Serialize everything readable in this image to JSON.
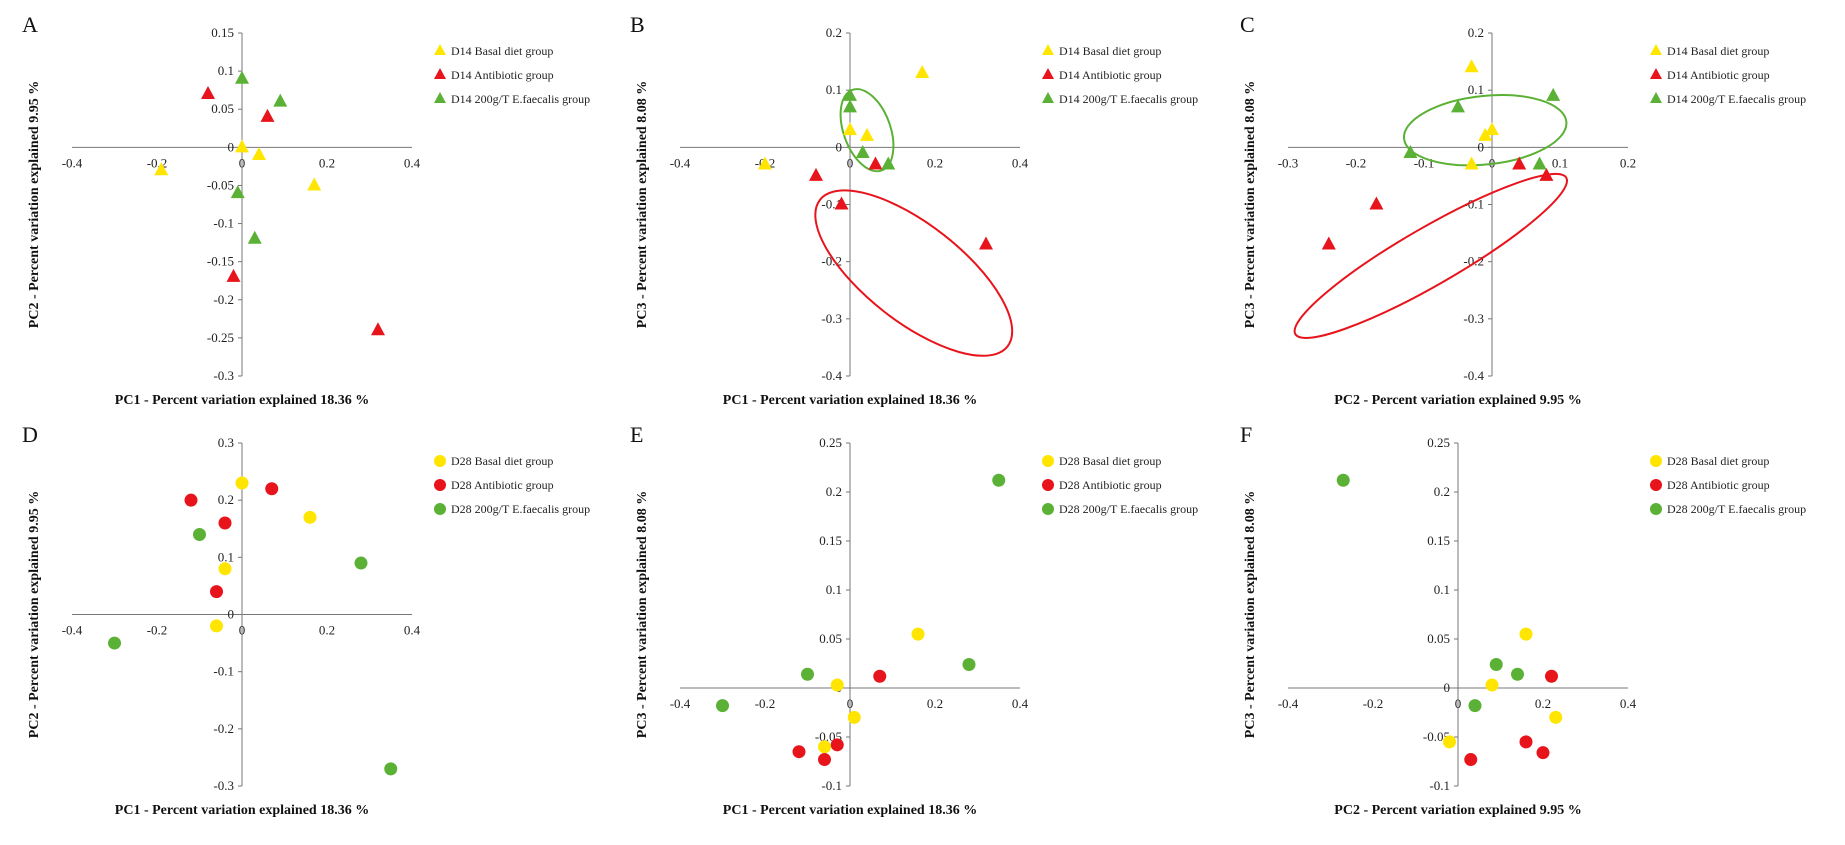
{
  "chart_data": [
    {
      "panel": "A",
      "type": "scatter",
      "marker": "triangle",
      "xlabel": "PC1 - Percent variation explained 18.36 %",
      "ylabel": "PC2 - Percent variation explained 9.95 %",
      "xlim": [
        -0.4,
        0.4
      ],
      "ylim": [
        -0.3,
        0.15
      ],
      "xticks": [
        "-0.4",
        "-0.2",
        "0",
        "0.2",
        "0.4"
      ],
      "xtick_values": [
        -0.4,
        -0.2,
        0,
        0.2,
        0.4
      ],
      "yticks": [
        "0.15",
        "0.1",
        "0.05",
        "0",
        "-0.05",
        "-0.1",
        "-0.15",
        "-0.2",
        "-0.25",
        "-0.3"
      ],
      "ytick_values": [
        0.15,
        0.1,
        0.05,
        0,
        -0.05,
        -0.1,
        -0.15,
        -0.2,
        -0.25,
        -0.3
      ],
      "series": [
        {
          "name": "D14 Basal diet group",
          "color": "#FFE500",
          "points": [
            [
              -0.19,
              -0.03
            ],
            [
              0,
              0
            ],
            [
              0.04,
              -0.01
            ],
            [
              0.17,
              -0.05
            ]
          ]
        },
        {
          "name": "D14 Antibiotic group",
          "color": "#E8141C",
          "points": [
            [
              -0.08,
              0.07
            ],
            [
              0.06,
              0.04
            ],
            [
              -0.02,
              -0.17
            ],
            [
              0.32,
              -0.24
            ]
          ]
        },
        {
          "name": "D14 200g/T E.faecalis group",
          "color": "#5BB135",
          "points": [
            [
              0,
              0.09
            ],
            [
              0.09,
              0.06
            ],
            [
              -0.01,
              -0.06
            ],
            [
              0.03,
              -0.12
            ]
          ]
        }
      ],
      "ellipses": []
    },
    {
      "panel": "B",
      "type": "scatter",
      "marker": "triangle",
      "xlabel": "PC1 - Percent variation explained 18.36 %",
      "ylabel": "PC3 - Percent variation explained 8.08 %",
      "xlim": [
        -0.4,
        0.4
      ],
      "ylim": [
        -0.4,
        0.2
      ],
      "xticks": [
        "-0.4",
        "-0.2",
        "0",
        "0.2",
        "0.4"
      ],
      "xtick_values": [
        -0.4,
        -0.2,
        0,
        0.2,
        0.4
      ],
      "yticks": [
        "0.2",
        "0.1",
        "0",
        "-0.1",
        "-0.2",
        "-0.3",
        "-0.4"
      ],
      "ytick_values": [
        0.2,
        0.1,
        0,
        -0.1,
        -0.2,
        -0.3,
        -0.4
      ],
      "series": [
        {
          "name": "D14 Basal diet group",
          "color": "#FFE500",
          "points": [
            [
              0.17,
              0.13
            ],
            [
              0,
              0.03
            ],
            [
              0.04,
              0.02
            ],
            [
              -0.2,
              -0.03
            ]
          ]
        },
        {
          "name": "D14 Antibiotic group",
          "color": "#E8141C",
          "points": [
            [
              0.06,
              -0.03
            ],
            [
              -0.08,
              -0.05
            ],
            [
              -0.02,
              -0.1
            ],
            [
              0.32,
              -0.17
            ]
          ]
        },
        {
          "name": "D14 200g/T E.faecalis group",
          "color": "#5BB135",
          "points": [
            [
              0,
              0.09
            ],
            [
              0,
              0.07
            ],
            [
              0.03,
              -0.01
            ],
            [
              0.09,
              -0.03
            ]
          ]
        }
      ],
      "ellipses": [
        {
          "color": "#5BB135",
          "cx": 0.04,
          "cy": 0.03,
          "rx": 0.055,
          "ry": 0.075,
          "rotate": -20
        },
        {
          "color": "#E8141C",
          "cx": 0.15,
          "cy": -0.22,
          "rx": 0.28,
          "ry": 0.085,
          "rotate": 38
        }
      ]
    },
    {
      "panel": "C",
      "type": "scatter",
      "marker": "triangle",
      "xlabel": "PC2 - Percent variation explained 9.95 %",
      "ylabel": "PC3 - Percent variation explained 8.08 %",
      "xlim": [
        -0.3,
        0.2
      ],
      "ylim": [
        -0.4,
        0.2
      ],
      "xticks": [
        "-0.3",
        "-0.2",
        "-0.1",
        "0",
        "0.1",
        "0.2"
      ],
      "xtick_values": [
        -0.3,
        -0.2,
        -0.1,
        0,
        0.1,
        0.2
      ],
      "yticks": [
        "0.2",
        "0.1",
        "0",
        "-0.1",
        "-0.2",
        "-0.3",
        "-0.4"
      ],
      "ytick_values": [
        0.2,
        0.1,
        0,
        -0.1,
        -0.2,
        -0.3,
        -0.4
      ],
      "series": [
        {
          "name": "D14 Basal diet group",
          "color": "#FFE500",
          "points": [
            [
              -0.03,
              0.14
            ],
            [
              0,
              0.03
            ],
            [
              -0.01,
              0.02
            ],
            [
              -0.03,
              -0.03
            ]
          ]
        },
        {
          "name": "D14 Antibiotic group",
          "color": "#E8141C",
          "points": [
            [
              0.04,
              -0.03
            ],
            [
              0.08,
              -0.05
            ],
            [
              -0.17,
              -0.1
            ],
            [
              -0.24,
              -0.17
            ]
          ]
        },
        {
          "name": "D14 200g/T E.faecalis group",
          "color": "#5BB135",
          "points": [
            [
              0.09,
              0.09
            ],
            [
              -0.05,
              0.07
            ],
            [
              -0.12,
              -0.01
            ],
            [
              0.07,
              -0.03
            ]
          ]
        }
      ],
      "ellipses": [
        {
          "color": "#5BB135",
          "cx": -0.01,
          "cy": 0.03,
          "rx": 0.12,
          "ry": 0.06,
          "rotate": -6
        },
        {
          "color": "#E8141C",
          "cx": -0.09,
          "cy": -0.19,
          "rx": 0.23,
          "ry": 0.05,
          "rotate": -30
        }
      ]
    },
    {
      "panel": "D",
      "type": "scatter",
      "marker": "circle",
      "xlabel": "PC1 - Percent variation explained 18.36 %",
      "ylabel": "PC2 - Percent variation explained 9.95 %",
      "xlim": [
        -0.4,
        0.4
      ],
      "ylim": [
        -0.3,
        0.3
      ],
      "xticks": [
        "-0.4",
        "-0.2",
        "0",
        "0.2",
        "0.4"
      ],
      "xtick_values": [
        -0.4,
        -0.2,
        0,
        0.2,
        0.4
      ],
      "yticks": [
        "0.3",
        "0.2",
        "0.1",
        "0",
        "-0.1",
        "-0.2",
        "-0.3"
      ],
      "ytick_values": [
        0.3,
        0.2,
        0.1,
        0,
        -0.1,
        -0.2,
        -0.3
      ],
      "series": [
        {
          "name": "D28 Basal diet group",
          "color": "#FFE500",
          "points": [
            [
              0,
              0.23
            ],
            [
              0.16,
              0.17
            ],
            [
              -0.04,
              0.08
            ],
            [
              -0.06,
              -0.02
            ]
          ]
        },
        {
          "name": "D28 Antibiotic group",
          "color": "#E8141C",
          "points": [
            [
              0.07,
              0.22
            ],
            [
              -0.12,
              0.2
            ],
            [
              -0.04,
              0.16
            ],
            [
              -0.06,
              0.04
            ]
          ]
        },
        {
          "name": "D28 200g/T E.faecalis group",
          "color": "#5BB135",
          "points": [
            [
              -0.1,
              0.14
            ],
            [
              0.28,
              0.09
            ],
            [
              -0.3,
              -0.05
            ],
            [
              0.35,
              -0.27
            ]
          ]
        }
      ],
      "ellipses": []
    },
    {
      "panel": "E",
      "type": "scatter",
      "marker": "circle",
      "xlabel": "PC1 - Percent variation explained 18.36 %",
      "ylabel": "PC3 - Percent variation explained 8.08 %",
      "xlim": [
        -0.4,
        0.4
      ],
      "ylim": [
        -0.1,
        0.25
      ],
      "xticks": [
        "-0.4",
        "-0.2",
        "0",
        "0.2",
        "0.4"
      ],
      "xtick_values": [
        -0.4,
        -0.2,
        0,
        0.2,
        0.4
      ],
      "yticks": [
        "0.25",
        "0.2",
        "0.15",
        "0.1",
        "0.05",
        "0",
        "-0.05",
        "-0.1"
      ],
      "ytick_values": [
        0.25,
        0.2,
        0.15,
        0.1,
        0.05,
        0,
        -0.05,
        -0.1
      ],
      "series": [
        {
          "name": "D28 Basal diet group",
          "color": "#FFE500",
          "points": [
            [
              0.16,
              0.055
            ],
            [
              -0.03,
              0.003
            ],
            [
              0.01,
              -0.03
            ],
            [
              -0.06,
              -0.06
            ]
          ]
        },
        {
          "name": "D28 Antibiotic group",
          "color": "#E8141C",
          "points": [
            [
              0.07,
              0.012
            ],
            [
              -0.03,
              -0.058
            ],
            [
              -0.06,
              -0.073
            ],
            [
              -0.12,
              -0.065
            ]
          ]
        },
        {
          "name": "D28 200g/T E.faecalis group",
          "color": "#5BB135",
          "points": [
            [
              0.35,
              0.212
            ],
            [
              0.28,
              0.024
            ],
            [
              -0.1,
              0.014
            ],
            [
              -0.3,
              -0.018
            ]
          ]
        }
      ],
      "ellipses": []
    },
    {
      "panel": "F",
      "type": "scatter",
      "marker": "circle",
      "xlabel": "PC2 - Percent variation explained 9.95 %",
      "ylabel": "PC3 - Percent variation explained 8.08 %",
      "xlim": [
        -0.4,
        0.4
      ],
      "ylim": [
        -0.1,
        0.25
      ],
      "xticks": [
        "-0.4",
        "-0.2",
        "0",
        "0.2",
        "0.4"
      ],
      "xtick_values": [
        -0.4,
        -0.2,
        0,
        0.2,
        0.4
      ],
      "yticks": [
        "0.25",
        "0.2",
        "0.15",
        "0.1",
        "0.05",
        "0",
        "-0.05",
        "-0.1"
      ],
      "ytick_values": [
        0.25,
        0.2,
        0.15,
        0.1,
        0.05,
        0,
        -0.05,
        -0.1
      ],
      "series": [
        {
          "name": "D28 Basal diet group",
          "color": "#FFE500",
          "points": [
            [
              0.16,
              0.055
            ],
            [
              0.08,
              0.003
            ],
            [
              0.23,
              -0.03
            ],
            [
              -0.02,
              -0.055
            ]
          ]
        },
        {
          "name": "D28 Antibiotic group",
          "color": "#E8141C",
          "points": [
            [
              0.22,
              0.012
            ],
            [
              0.16,
              -0.055
            ],
            [
              0.2,
              -0.066
            ],
            [
              0.03,
              -0.073
            ]
          ]
        },
        {
          "name": "D28 200g/T E.faecalis group",
          "color": "#5BB135",
          "points": [
            [
              -0.27,
              0.212
            ],
            [
              0.09,
              0.024
            ],
            [
              0.14,
              0.014
            ],
            [
              0.04,
              -0.018
            ]
          ]
        }
      ],
      "ellipses": []
    }
  ]
}
